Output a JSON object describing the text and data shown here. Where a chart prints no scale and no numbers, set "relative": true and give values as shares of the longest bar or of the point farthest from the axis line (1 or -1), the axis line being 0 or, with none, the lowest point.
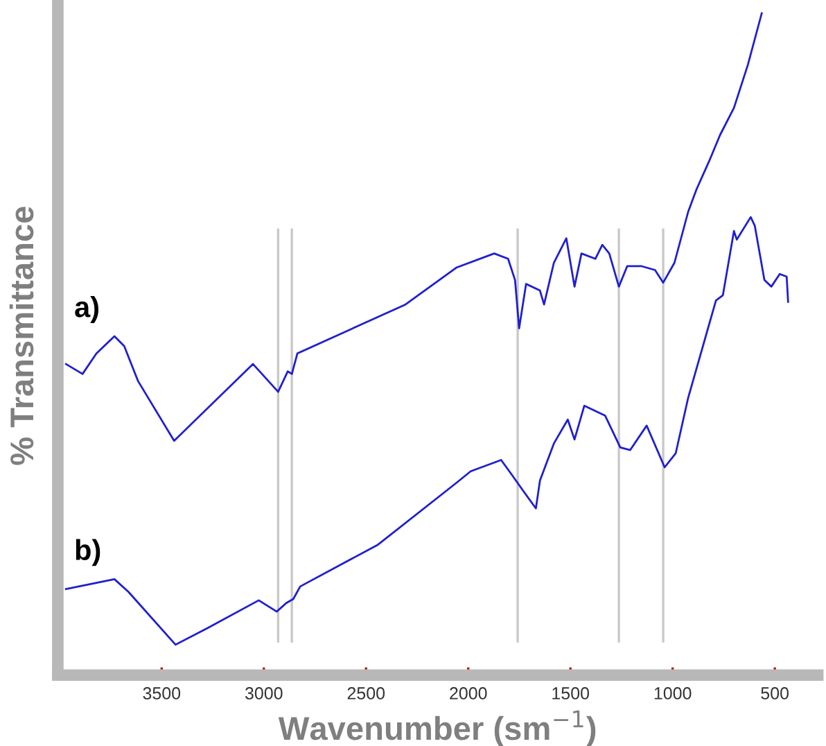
{
  "chart_data": {
    "type": "line",
    "relative": true,
    "xlabel": "Wavenumber (sm$^{−1}$)",
    "ylabel": "% Transmittance",
    "xlim": [
      4008,
      290
    ],
    "xticks": [
      3500,
      3000,
      2500,
      2000,
      1500,
      1000,
      500
    ],
    "grid": false,
    "legend": false,
    "marker": "none",
    "line_style": "solid",
    "ref_lines": [
      {
        "axis": "x",
        "value": 2930,
        "color": "#c8c8c8"
      },
      {
        "axis": "x",
        "value": 2863,
        "color": "#c8c8c8"
      },
      {
        "axis": "x",
        "value": 1758,
        "color": "#c8c8c8"
      },
      {
        "axis": "x",
        "value": 1263,
        "color": "#c8c8c8"
      },
      {
        "axis": "x",
        "value": 1046,
        "color": "#c8c8c8"
      }
    ],
    "series": [
      {
        "name": "a)",
        "color": "#1f1fd0",
        "x": [
          3968,
          3887,
          3819,
          3731,
          3683,
          3615,
          3439,
          3053,
          2930,
          2883,
          2863,
          2836,
          2307,
          2056,
          1873,
          1805,
          1771,
          1751,
          1717,
          1649,
          1629,
          1581,
          1520,
          1480,
          1446,
          1378,
          1344,
          1310,
          1263,
          1222,
          1154,
          1086,
          1046,
          991,
          924,
          883,
          822,
          768,
          700,
          632,
          564
        ],
        "values": [
          0.47,
          0.455,
          0.486,
          0.512,
          0.497,
          0.444,
          0.354,
          0.47,
          0.428,
          0.459,
          0.455,
          0.486,
          0.56,
          0.616,
          0.637,
          0.629,
          0.597,
          0.524,
          0.591,
          0.581,
          0.56,
          0.623,
          0.66,
          0.587,
          0.637,
          0.629,
          0.65,
          0.637,
          0.587,
          0.618,
          0.618,
          0.612,
          0.593,
          0.623,
          0.7,
          0.734,
          0.776,
          0.816,
          0.857,
          0.922,
          1
        ]
      },
      {
        "name": "b)",
        "color": "#1f1fd0",
        "x": [
          3968,
          3731,
          3663,
          3432,
          3276,
          3025,
          2937,
          2890,
          2856,
          2822,
          2442,
          2056,
          1988,
          1839,
          1785,
          1737,
          1669,
          1649,
          1581,
          1513,
          1480,
          1432,
          1330,
          1256,
          1208,
          1127,
          1039,
          985,
          924,
          788,
          754,
          700,
          686,
          618,
          598,
          551,
          517,
          476,
          442,
          435
        ],
        "values": [
          0.13,
          0.145,
          0.126,
          0.046,
          0.071,
          0.113,
          0.096,
          0.109,
          0.115,
          0.134,
          0.197,
          0.291,
          0.308,
          0.325,
          0.302,
          0.281,
          0.252,
          0.294,
          0.35,
          0.386,
          0.356,
          0.407,
          0.392,
          0.344,
          0.34,
          0.377,
          0.314,
          0.335,
          0.419,
          0.566,
          0.574,
          0.671,
          0.658,
          0.692,
          0.679,
          0.597,
          0.587,
          0.606,
          0.602,
          0.564
        ]
      }
    ]
  }
}
